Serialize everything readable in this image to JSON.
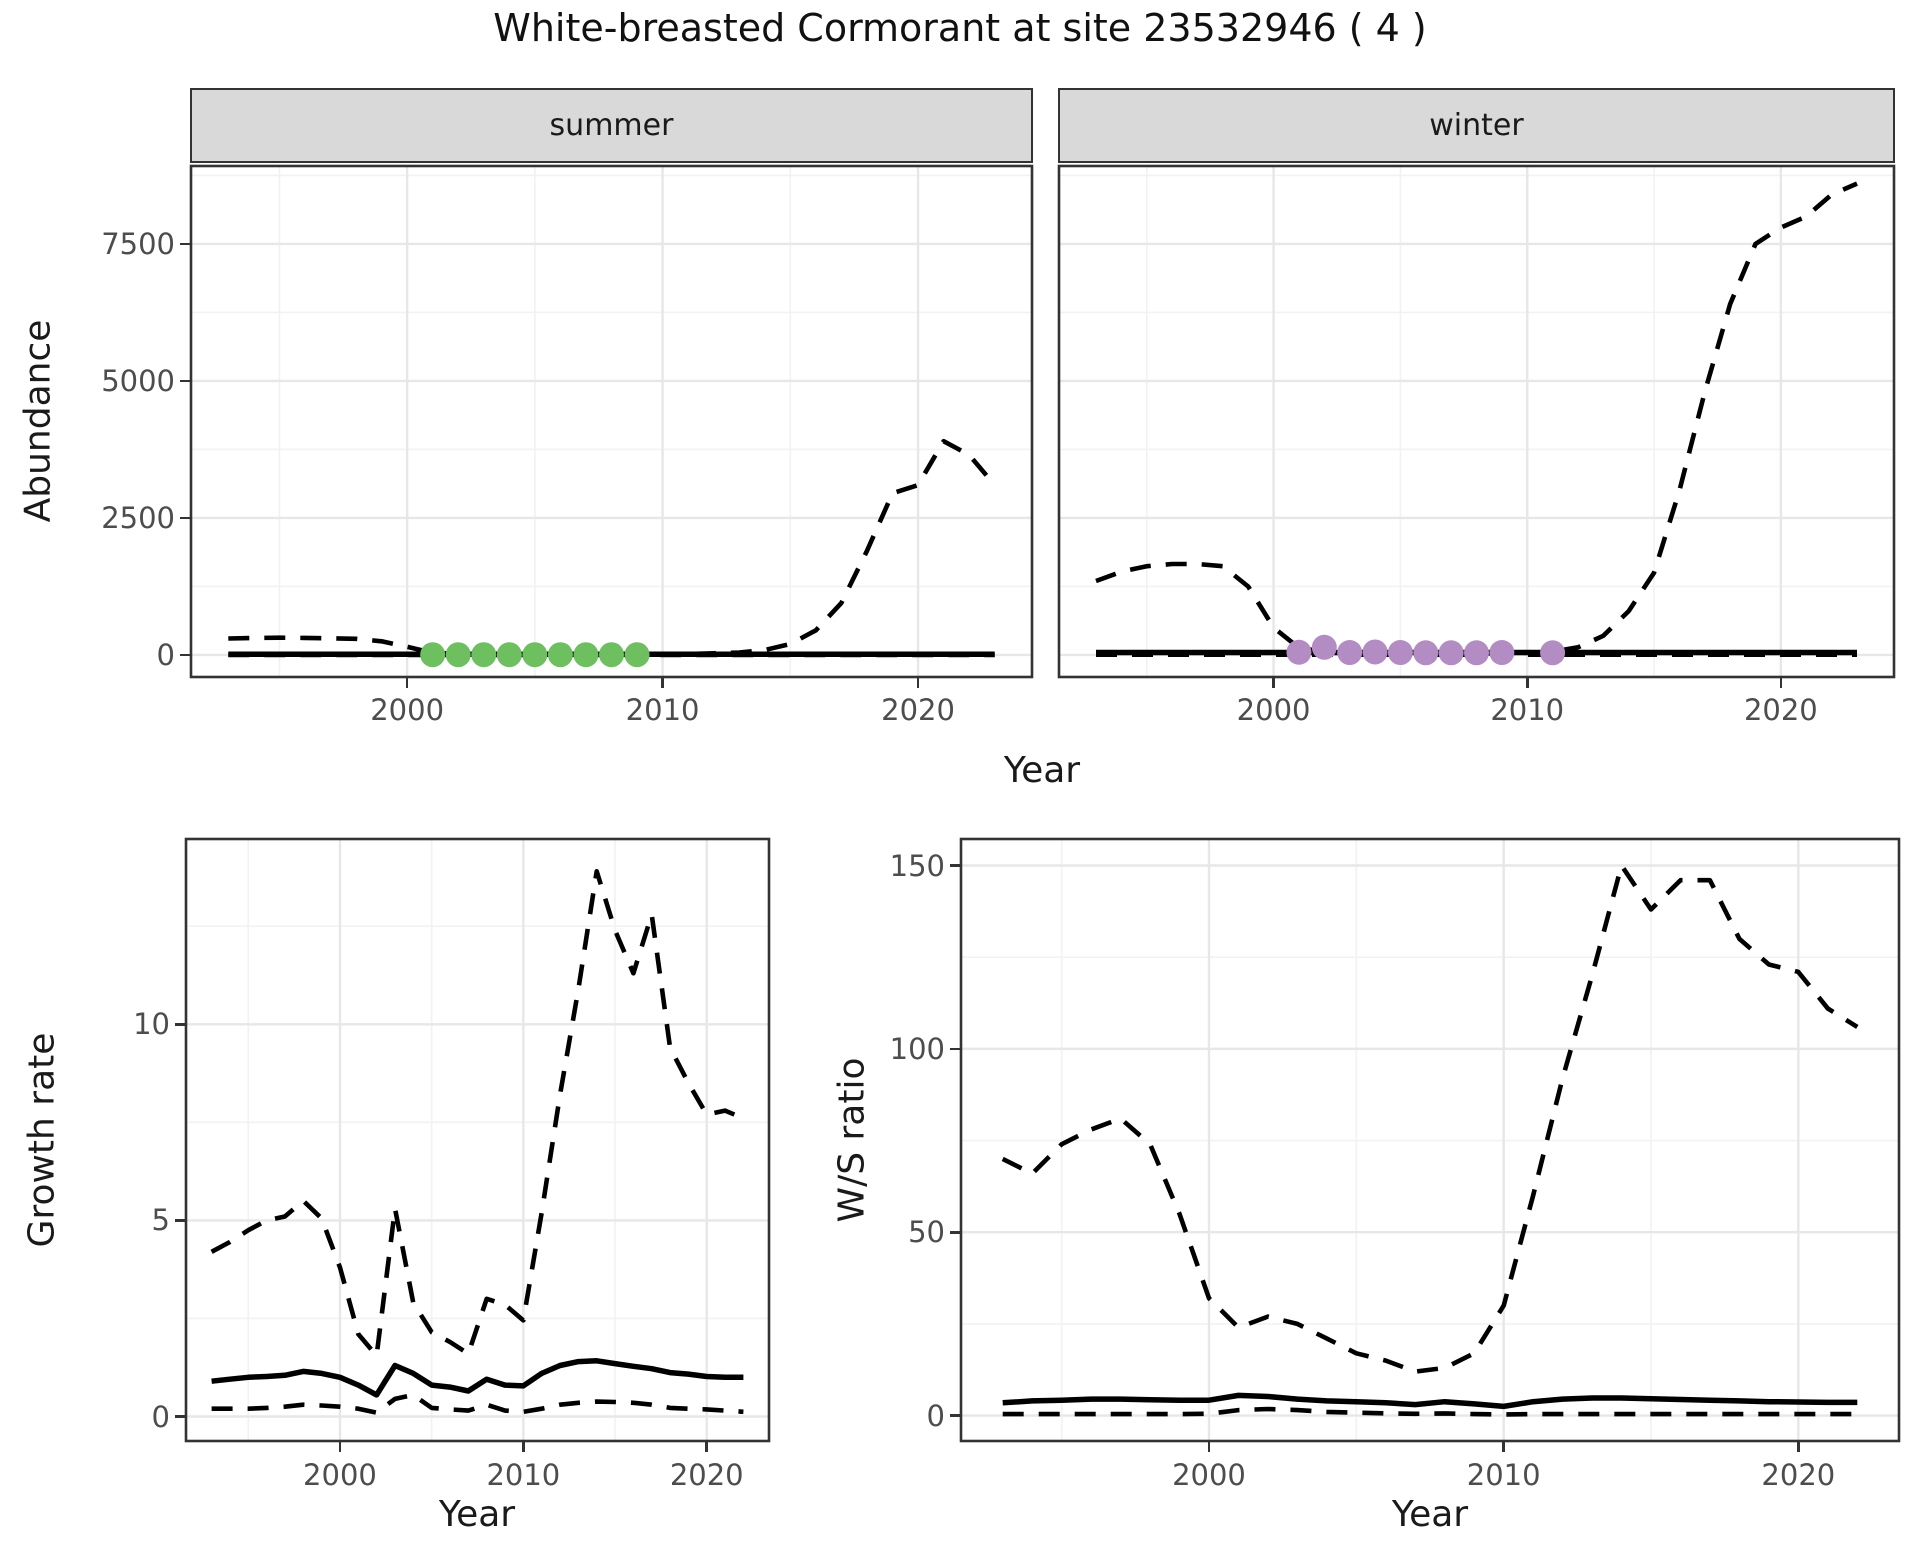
{
  "title": "White-breasted Cormorant at site 23532946 ( 4 )",
  "colors": {
    "line": "#000000",
    "summer_points": "#6dbf60",
    "winter_points": "#b48cc4",
    "strip_background": "#d9d9d9",
    "grid_major": "#e7e7e7",
    "grid_minor": "#f2f2f2",
    "panel_border": "#333333",
    "tick_text": "#4d4d4d",
    "title_text": "#111111"
  },
  "chart_data": [
    {
      "id": "summer",
      "type": "line",
      "facet_label": "summer",
      "ylabel": "Abundance",
      "xlabel": "Year",
      "xlim": [
        1991.5,
        2024.5
      ],
      "ylim": [
        -420,
        8940
      ],
      "xticks": [
        2000,
        2010,
        2020
      ],
      "yticks": [
        0,
        2500,
        5000,
        7500
      ],
      "xminor": [
        1995,
        2005,
        2015
      ],
      "yminor": [
        1250,
        3750,
        6250,
        8750
      ],
      "x": [
        1993,
        1994,
        1995,
        1996,
        1997,
        1998,
        1999,
        2000,
        2001,
        2002,
        2003,
        2004,
        2005,
        2006,
        2007,
        2008,
        2009,
        2010,
        2011,
        2012,
        2013,
        2014,
        2015,
        2016,
        2017,
        2018,
        2019,
        2020,
        2021,
        2022,
        2023
      ],
      "series": [
        {
          "name": "upper_ci",
          "style": "dashed",
          "values": [
            300,
            310,
            315,
            312,
            305,
            295,
            250,
            150,
            40,
            20,
            15,
            12,
            10,
            10,
            10,
            10,
            12,
            15,
            20,
            30,
            45,
            90,
            200,
            450,
            950,
            1900,
            2950,
            3100,
            3900,
            3650,
            3100
          ]
        },
        {
          "name": "estimate",
          "style": "solid",
          "values": [
            15,
            15,
            15,
            15,
            15,
            15,
            15,
            15,
            15,
            15,
            15,
            15,
            15,
            15,
            15,
            15,
            15,
            15,
            15,
            15,
            15,
            15,
            15,
            15,
            15,
            15,
            15,
            15,
            15,
            15,
            15
          ]
        },
        {
          "name": "lower_ci",
          "style": "dashed",
          "values": [
            2,
            2,
            2,
            2,
            2,
            2,
            2,
            2,
            2,
            2,
            2,
            2,
            2,
            2,
            2,
            2,
            2,
            2,
            2,
            2,
            2,
            2,
            2,
            2,
            2,
            2,
            2,
            2,
            2,
            2,
            2
          ]
        }
      ],
      "points": {
        "name": "observed_counts",
        "color": "#6dbf60",
        "x": [
          2001,
          2002,
          2003,
          2004,
          2005,
          2006,
          2007,
          2008,
          2009
        ],
        "y": [
          5,
          5,
          5,
          5,
          5,
          5,
          5,
          5,
          5
        ]
      }
    },
    {
      "id": "winter",
      "type": "line",
      "facet_label": "winter",
      "ylabel": "Abundance",
      "xlabel": "Year",
      "xlim": [
        1991.5,
        2024.5
      ],
      "ylim": [
        -420,
        8940
      ],
      "xticks": [
        2000,
        2010,
        2020
      ],
      "yticks": [
        0,
        2500,
        5000,
        7500
      ],
      "xminor": [
        1995,
        2005,
        2015
      ],
      "yminor": [
        1250,
        3750,
        6250,
        8750
      ],
      "x": [
        1993,
        1994,
        1995,
        1996,
        1997,
        1998,
        1999,
        2000,
        2001,
        2002,
        2003,
        2004,
        2005,
        2006,
        2007,
        2008,
        2009,
        2010,
        2011,
        2012,
        2013,
        2014,
        2015,
        2016,
        2017,
        2018,
        2019,
        2020,
        2021,
        2022,
        2023
      ],
      "series": [
        {
          "name": "upper_ci",
          "style": "dashed",
          "values": [
            1350,
            1520,
            1620,
            1660,
            1660,
            1620,
            1250,
            500,
            130,
            60,
            40,
            30,
            25,
            25,
            25,
            25,
            30,
            40,
            60,
            140,
            350,
            800,
            1500,
            3000,
            4800,
            6400,
            7500,
            7800,
            8000,
            8400,
            8600
          ]
        },
        {
          "name": "estimate",
          "style": "solid",
          "values": [
            45,
            45,
            45,
            45,
            45,
            45,
            45,
            45,
            45,
            45,
            45,
            45,
            45,
            45,
            45,
            45,
            45,
            45,
            45,
            45,
            45,
            45,
            45,
            45,
            45,
            45,
            45,
            45,
            45,
            45,
            45
          ]
        },
        {
          "name": "lower_ci",
          "style": "dashed",
          "values": [
            5,
            5,
            5,
            5,
            5,
            5,
            5,
            5,
            5,
            5,
            5,
            5,
            5,
            5,
            5,
            5,
            5,
            5,
            5,
            5,
            5,
            5,
            5,
            5,
            5,
            5,
            5,
            5,
            5,
            5,
            5
          ]
        }
      ],
      "points": {
        "name": "observed_counts",
        "color": "#b48cc4",
        "x": [
          2001,
          2002,
          2003,
          2004,
          2005,
          2006,
          2007,
          2008,
          2009,
          2011
        ],
        "y": [
          50,
          140,
          45,
          55,
          45,
          40,
          40,
          40,
          45,
          40
        ]
      }
    },
    {
      "id": "growth",
      "type": "line",
      "facet_label": "",
      "ylabel": "Growth rate",
      "xlabel": "Year",
      "xlim": [
        1991.55,
        2023.45
      ],
      "ylim": [
        -0.65,
        14.75
      ],
      "xticks": [
        2000,
        2010,
        2020
      ],
      "yticks": [
        0,
        5,
        10
      ],
      "xminor": [
        1995,
        2005,
        2015
      ],
      "yminor": [
        2.5,
        7.5,
        12.5
      ],
      "x": [
        1993,
        1994,
        1995,
        1996,
        1997,
        1998,
        1999,
        2000,
        2001,
        2002,
        2003,
        2004,
        2005,
        2006,
        2007,
        2008,
        2009,
        2010,
        2011,
        2012,
        2013,
        2014,
        2015,
        2016,
        2017,
        2018,
        2019,
        2020,
        2021,
        2022
      ],
      "series": [
        {
          "name": "upper_ci",
          "style": "dashed",
          "values": [
            4.2,
            4.45,
            4.75,
            5.0,
            5.1,
            5.5,
            5.05,
            3.8,
            2.1,
            1.55,
            5.3,
            2.9,
            2.15,
            1.9,
            1.6,
            3.0,
            2.85,
            2.45,
            5.2,
            8.2,
            10.9,
            13.9,
            12.4,
            11.3,
            12.8,
            9.4,
            8.5,
            7.7,
            7.8,
            7.6
          ]
        },
        {
          "name": "estimate",
          "style": "solid",
          "values": [
            0.9,
            0.95,
            1.0,
            1.02,
            1.05,
            1.15,
            1.1,
            1.0,
            0.8,
            0.55,
            1.3,
            1.1,
            0.8,
            0.75,
            0.65,
            0.95,
            0.8,
            0.78,
            1.1,
            1.3,
            1.4,
            1.42,
            1.35,
            1.28,
            1.22,
            1.12,
            1.08,
            1.02,
            1.0,
            1.0
          ]
        },
        {
          "name": "lower_ci",
          "style": "dashed",
          "values": [
            0.2,
            0.2,
            0.2,
            0.22,
            0.25,
            0.3,
            0.28,
            0.25,
            0.2,
            0.1,
            0.45,
            0.55,
            0.22,
            0.18,
            0.15,
            0.3,
            0.15,
            0.12,
            0.2,
            0.3,
            0.35,
            0.38,
            0.37,
            0.35,
            0.3,
            0.22,
            0.2,
            0.18,
            0.15,
            0.12
          ]
        }
      ],
      "points": null
    },
    {
      "id": "ws",
      "type": "line",
      "facet_label": "",
      "ylabel": "W/S ratio",
      "xlabel": "Year",
      "xlim": [
        1991.55,
        2023.45
      ],
      "ylim": [
        -7.2,
        157.5
      ],
      "xticks": [
        2000,
        2010,
        2020
      ],
      "yticks": [
        0,
        50,
        100,
        150
      ],
      "xminor": [
        1995,
        2005,
        2015
      ],
      "yminor": [
        25,
        75,
        125
      ],
      "x": [
        1993,
        1994,
        1995,
        1996,
        1997,
        1998,
        1999,
        2000,
        2001,
        2002,
        2003,
        2004,
        2005,
        2006,
        2007,
        2008,
        2009,
        2010,
        2011,
        2012,
        2013,
        2014,
        2015,
        2016,
        2017,
        2018,
        2019,
        2020,
        2021,
        2022
      ],
      "series": [
        {
          "name": "upper_ci",
          "style": "dashed",
          "values": [
            70,
            66,
            74,
            78,
            81,
            74,
            55,
            32,
            24,
            27,
            25,
            21,
            17,
            15,
            12,
            13,
            17,
            30,
            60,
            92,
            120,
            150,
            138,
            146,
            146,
            130,
            123,
            121,
            111,
            106
          ]
        },
        {
          "name": "estimate",
          "style": "solid",
          "values": [
            3.5,
            4.0,
            4.2,
            4.5,
            4.5,
            4.3,
            4.2,
            4.2,
            5.5,
            5.2,
            4.5,
            4.0,
            3.8,
            3.5,
            3.0,
            3.8,
            3.2,
            2.5,
            3.8,
            4.5,
            4.8,
            4.8,
            4.6,
            4.4,
            4.2,
            4.0,
            3.8,
            3.7,
            3.6,
            3.6
          ]
        },
        {
          "name": "lower_ci",
          "style": "dashed",
          "values": [
            0.4,
            0.4,
            0.4,
            0.4,
            0.4,
            0.4,
            0.4,
            0.5,
            1.5,
            1.8,
            1.5,
            1.0,
            0.8,
            0.6,
            0.5,
            0.6,
            0.4,
            0.3,
            0.4,
            0.4,
            0.4,
            0.4,
            0.4,
            0.4,
            0.4,
            0.4,
            0.4,
            0.4,
            0.4,
            0.4
          ]
        }
      ],
      "points": null
    }
  ]
}
